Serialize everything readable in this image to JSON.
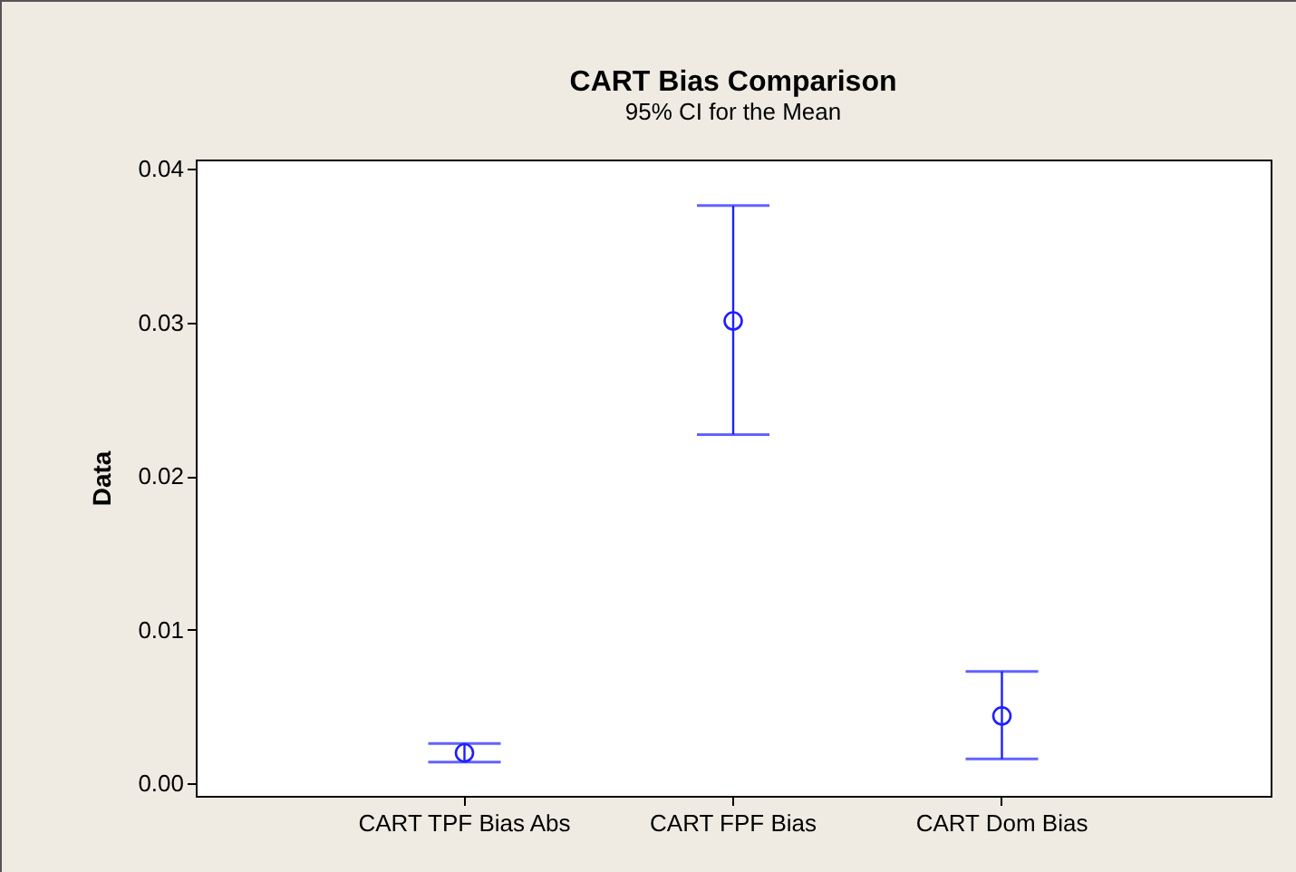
{
  "chart_data": {
    "type": "scatter",
    "title": "CART Bias Comparison",
    "subtitle": "95% CI for the Mean",
    "ylabel": "Data",
    "categories": [
      "CART TPF Bias Abs",
      "CART FPF Bias",
      "CART Dom Bias"
    ],
    "series": [
      {
        "color": "#1f1fff",
        "values": [
          0.002,
          0.0301,
          0.0044
        ],
        "errors": [
          [
            0.0014,
            0.0026
          ],
          [
            0.0227,
            0.0376
          ],
          [
            0.0016,
            0.0073
          ]
        ]
      }
    ],
    "ylim": [
      -0.0008,
      0.0406
    ],
    "yticks": [
      {
        "value": 0,
        "label": "0.00"
      },
      {
        "value": 0.01,
        "label": "0.01"
      },
      {
        "value": 0.02,
        "label": "0.02"
      },
      {
        "value": 0.03,
        "label": "0.03"
      },
      {
        "value": 0.04,
        "label": "0.04"
      }
    ],
    "grid": false,
    "marker": "circle"
  }
}
